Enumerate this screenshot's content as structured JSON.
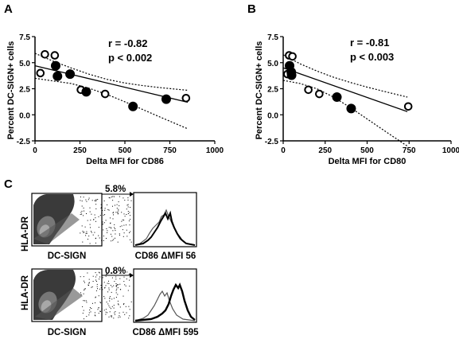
{
  "panel_letters": {
    "a": "A",
    "b": "B",
    "c": "C"
  },
  "chart_data": [
    {
      "type": "scatter",
      "panel": "A",
      "xlabel": "Delta MFI for CD86",
      "ylabel": "Percent DC-SIGN+ cells",
      "xlim": [
        0,
        1000
      ],
      "ylim": [
        -2.5,
        7.5
      ],
      "xticks": [
        "0",
        "250",
        "500",
        "750",
        "1000"
      ],
      "yticks": [
        "-2.5",
        "0.0",
        "2.5",
        "5.0",
        "7.5"
      ],
      "annotation_r": "r = -0.82",
      "annotation_p": "p < 0.002",
      "series": [
        {
          "marker": "open-circle",
          "points": [
            [
              30,
              4.0
            ],
            [
              55,
              5.8
            ],
            [
              110,
              5.7
            ],
            [
              255,
              2.4
            ],
            [
              390,
              2.0
            ],
            [
              840,
              1.6
            ]
          ]
        },
        {
          "marker": "filled-circle",
          "points": [
            [
              115,
              4.7
            ],
            [
              125,
              3.7
            ],
            [
              195,
              3.9
            ],
            [
              285,
              2.2
            ],
            [
              545,
              0.8
            ],
            [
              730,
              1.5
            ]
          ]
        }
      ],
      "regression": {
        "x": [
          0,
          850
        ],
        "y": [
          4.7,
          1.2
        ]
      },
      "ci_upper": {
        "x": [
          0,
          100,
          200,
          300,
          400,
          500,
          600,
          700,
          850
        ],
        "y": [
          5.9,
          5.15,
          4.5,
          3.9,
          3.4,
          3.05,
          2.8,
          2.6,
          2.35
        ]
      },
      "ci_lower": {
        "x": [
          0,
          100,
          200,
          300,
          400,
          500,
          600,
          700,
          850
        ],
        "y": [
          3.5,
          3.25,
          3.0,
          2.55,
          1.95,
          1.25,
          0.5,
          -0.25,
          -1.35
        ]
      }
    },
    {
      "type": "scatter",
      "panel": "B",
      "xlabel": "Delta MFI for CD80",
      "ylabel": "Percent DC-SIGN+ cells",
      "xlim": [
        0,
        1000
      ],
      "ylim": [
        -2.5,
        7.5
      ],
      "xticks": [
        "0",
        "250",
        "500",
        "750",
        "1000"
      ],
      "yticks": [
        "-2.5",
        "0.0",
        "2.5",
        "5.0",
        "7.5"
      ],
      "annotation_r": "r = -0.81",
      "annotation_p": "p < 0.003",
      "series": [
        {
          "marker": "open-circle",
          "points": [
            [
              25,
              3.9
            ],
            [
              35,
              5.7
            ],
            [
              55,
              5.6
            ],
            [
              150,
              2.4
            ],
            [
              215,
              2.0
            ],
            [
              745,
              0.8
            ]
          ]
        },
        {
          "marker": "filled-circle",
          "points": [
            [
              38,
              4.7
            ],
            [
              48,
              4.1
            ],
            [
              50,
              3.8
            ],
            [
              320,
              1.7
            ],
            [
              405,
              0.6
            ]
          ]
        }
      ],
      "regression": {
        "x": [
          0,
          740
        ],
        "y": [
          4.5,
          0.3
        ]
      },
      "ci_upper": {
        "x": [
          0,
          100,
          200,
          300,
          400,
          500,
          600,
          740
        ],
        "y": [
          5.75,
          4.9,
          4.2,
          3.6,
          3.1,
          2.65,
          2.25,
          1.7
        ]
      },
      "ci_lower": {
        "x": [
          0,
          100,
          200,
          300,
          400,
          500,
          600,
          740
        ],
        "y": [
          3.3,
          3.0,
          2.5,
          1.7,
          0.7,
          -0.4,
          -1.5,
          -3.0
        ]
      }
    }
  ],
  "flow_panels": [
    {
      "dot_ylabel": "HLA-DR",
      "dot_xlabel": "DC-SIGN",
      "gate_percent": "5.8%",
      "hist_label": "CD86 ΔMFI 56"
    },
    {
      "dot_ylabel": "HLA-DR",
      "dot_xlabel": "DC-SIGN",
      "gate_percent": "0.8%",
      "hist_label": "CD86 ΔMFI 595"
    }
  ]
}
